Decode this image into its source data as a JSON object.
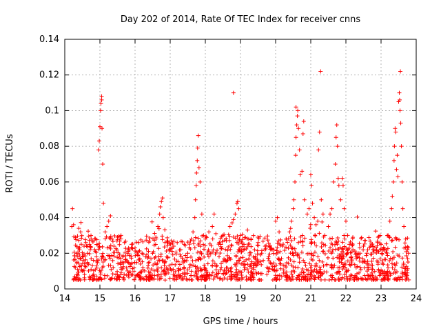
{
  "chart_data": {
    "type": "scatter",
    "title": "Day 202 of 2014, Rate Of TEC Index for receiver cnns",
    "xlabel": "GPS time / hours",
    "ylabel": "ROTI / TECUs",
    "xlim": [
      14,
      24
    ],
    "ylim": [
      0,
      0.14
    ],
    "xticks": [
      14,
      15,
      16,
      17,
      18,
      19,
      20,
      21,
      22,
      23,
      24
    ],
    "yticks": [
      0,
      0.02,
      0.04,
      0.06,
      0.08,
      0.1,
      0.12,
      0.14
    ],
    "xtick_labels": [
      "14",
      "15",
      "16",
      "17",
      "18",
      "19",
      "20",
      "21",
      "22",
      "23",
      "24"
    ],
    "ytick_labels": [
      "0",
      "0.02",
      "0.04",
      "0.06",
      "0.08",
      "0.1",
      "0.12",
      "0.14"
    ],
    "grid": true,
    "marker": "+",
    "color": "#ff0000",
    "baseline_range": [
      0.005,
      0.03
    ],
    "series": [
      {
        "name": "ROTI",
        "points": [
          [
            14.2,
            0.035
          ],
          [
            14.22,
            0.045
          ],
          [
            14.25,
            0.036
          ],
          [
            14.3,
            0.012
          ],
          [
            14.35,
            0.015
          ],
          [
            14.4,
            0.034
          ],
          [
            14.42,
            0.022
          ],
          [
            14.45,
            0.032
          ],
          [
            14.5,
            0.018
          ],
          [
            14.55,
            0.024
          ],
          [
            14.6,
            0.026
          ],
          [
            14.65,
            0.02
          ],
          [
            14.7,
            0.025
          ],
          [
            14.75,
            0.028
          ],
          [
            14.8,
            0.027
          ],
          [
            14.85,
            0.022
          ],
          [
            14.9,
            0.018
          ],
          [
            14.96,
            0.078
          ],
          [
            14.98,
            0.083
          ],
          [
            15.0,
            0.091
          ],
          [
            15.02,
            0.1
          ],
          [
            15.03,
            0.104
          ],
          [
            15.05,
            0.108
          ],
          [
            15.06,
            0.09
          ],
          [
            15.08,
            0.07
          ],
          [
            15.1,
            0.048
          ],
          [
            15.05,
            0.106
          ],
          [
            15.15,
            0.032
          ],
          [
            15.2,
            0.035
          ],
          [
            15.25,
            0.038
          ],
          [
            15.3,
            0.041
          ],
          [
            15.35,
            0.028
          ],
          [
            15.4,
            0.024
          ],
          [
            15.5,
            0.029
          ],
          [
            15.6,
            0.03
          ],
          [
            15.7,
            0.026
          ],
          [
            15.8,
            0.022
          ],
          [
            15.9,
            0.025
          ],
          [
            16.0,
            0.023
          ],
          [
            16.1,
            0.026
          ],
          [
            16.2,
            0.02
          ],
          [
            16.3,
            0.018
          ],
          [
            16.4,
            0.015
          ],
          [
            16.5,
            0.02
          ],
          [
            16.6,
            0.028
          ],
          [
            16.65,
            0.035
          ],
          [
            16.7,
            0.042
          ],
          [
            16.72,
            0.046
          ],
          [
            16.75,
            0.049
          ],
          [
            16.78,
            0.051
          ],
          [
            16.8,
            0.04
          ],
          [
            16.85,
            0.026
          ],
          [
            16.9,
            0.018
          ],
          [
            17.0,
            0.022
          ],
          [
            17.1,
            0.024
          ],
          [
            17.2,
            0.026
          ],
          [
            17.3,
            0.022
          ],
          [
            17.4,
            0.025
          ],
          [
            17.5,
            0.02
          ],
          [
            17.6,
            0.028
          ],
          [
            17.65,
            0.032
          ],
          [
            17.7,
            0.04
          ],
          [
            17.72,
            0.05
          ],
          [
            17.74,
            0.058
          ],
          [
            17.75,
            0.065
          ],
          [
            17.77,
            0.072
          ],
          [
            17.78,
            0.079
          ],
          [
            17.8,
            0.086
          ],
          [
            17.82,
            0.068
          ],
          [
            17.85,
            0.06
          ],
          [
            17.9,
            0.042
          ],
          [
            17.95,
            0.03
          ],
          [
            18.0,
            0.028
          ],
          [
            18.1,
            0.032
          ],
          [
            18.2,
            0.035
          ],
          [
            18.25,
            0.042
          ],
          [
            18.3,
            0.031
          ],
          [
            18.4,
            0.026
          ],
          [
            18.5,
            0.03
          ],
          [
            18.6,
            0.027
          ],
          [
            18.7,
            0.035
          ],
          [
            18.8,
            0.11
          ],
          [
            18.85,
            0.042
          ],
          [
            18.9,
            0.048
          ],
          [
            18.92,
            0.049
          ],
          [
            18.95,
            0.045
          ],
          [
            19.0,
            0.03
          ],
          [
            19.1,
            0.025
          ],
          [
            19.2,
            0.033
          ],
          [
            19.3,
            0.028
          ],
          [
            19.4,
            0.022
          ],
          [
            19.5,
            0.026
          ],
          [
            19.6,
            0.02
          ],
          [
            19.7,
            0.024
          ],
          [
            19.8,
            0.018
          ],
          [
            19.9,
            0.022
          ],
          [
            20.0,
            0.038
          ],
          [
            20.05,
            0.04
          ],
          [
            20.1,
            0.032
          ],
          [
            20.2,
            0.024
          ],
          [
            20.3,
            0.028
          ],
          [
            20.4,
            0.032
          ],
          [
            20.45,
            0.038
          ],
          [
            20.5,
            0.045
          ],
          [
            20.52,
            0.05
          ],
          [
            20.55,
            0.06
          ],
          [
            20.57,
            0.075
          ],
          [
            20.58,
            0.085
          ],
          [
            20.6,
            0.092
          ],
          [
            20.62,
            0.097
          ],
          [
            20.58,
            0.102
          ],
          [
            20.63,
            0.1
          ],
          [
            20.65,
            0.09
          ],
          [
            20.68,
            0.078
          ],
          [
            20.7,
            0.064
          ],
          [
            20.75,
            0.066
          ],
          [
            20.8,
            0.094
          ],
          [
            20.78,
            0.087
          ],
          [
            20.82,
            0.05
          ],
          [
            20.9,
            0.042
          ],
          [
            20.95,
            0.045
          ],
          [
            21.0,
            0.064
          ],
          [
            21.02,
            0.058
          ],
          [
            21.05,
            0.048
          ],
          [
            21.1,
            0.04
          ],
          [
            21.15,
            0.036
          ],
          [
            21.2,
            0.038
          ],
          [
            21.22,
            0.078
          ],
          [
            21.25,
            0.088
          ],
          [
            21.28,
            0.122
          ],
          [
            21.3,
            0.05
          ],
          [
            21.35,
            0.042
          ],
          [
            21.4,
            0.03
          ],
          [
            21.5,
            0.035
          ],
          [
            21.55,
            0.042
          ],
          [
            21.6,
            0.045
          ],
          [
            21.65,
            0.06
          ],
          [
            21.7,
            0.07
          ],
          [
            21.72,
            0.085
          ],
          [
            21.74,
            0.092
          ],
          [
            21.76,
            0.08
          ],
          [
            21.78,
            0.062
          ],
          [
            21.8,
            0.058
          ],
          [
            21.85,
            0.05
          ],
          [
            21.9,
            0.062
          ],
          [
            21.92,
            0.058
          ],
          [
            21.95,
            0.045
          ],
          [
            22.0,
            0.038
          ],
          [
            22.05,
            0.03
          ],
          [
            22.1,
            0.025
          ],
          [
            22.2,
            0.022
          ],
          [
            22.3,
            0.018
          ],
          [
            22.4,
            0.02
          ],
          [
            22.5,
            0.024
          ],
          [
            22.6,
            0.02
          ],
          [
            22.7,
            0.024
          ],
          [
            22.8,
            0.022
          ],
          [
            22.9,
            0.026
          ],
          [
            23.0,
            0.025
          ],
          [
            23.1,
            0.022
          ],
          [
            23.2,
            0.03
          ],
          [
            23.25,
            0.038
          ],
          [
            23.3,
            0.045
          ],
          [
            23.32,
            0.052
          ],
          [
            23.35,
            0.06
          ],
          [
            23.37,
            0.072
          ],
          [
            23.38,
            0.08
          ],
          [
            23.4,
            0.09
          ],
          [
            23.42,
            0.088
          ],
          [
            23.44,
            0.067
          ],
          [
            23.46,
            0.075
          ],
          [
            23.48,
            0.063
          ],
          [
            23.5,
            0.105
          ],
          [
            23.52,
            0.11
          ],
          [
            23.53,
            0.106
          ],
          [
            23.54,
            0.1
          ],
          [
            23.55,
            0.122
          ],
          [
            23.56,
            0.093
          ],
          [
            23.58,
            0.08
          ],
          [
            23.6,
            0.06
          ],
          [
            23.62,
            0.045
          ],
          [
            23.65,
            0.035
          ],
          [
            23.7,
            0.028
          ],
          [
            23.75,
            0.022
          ],
          [
            23.78,
            0.02
          ]
        ]
      }
    ]
  }
}
